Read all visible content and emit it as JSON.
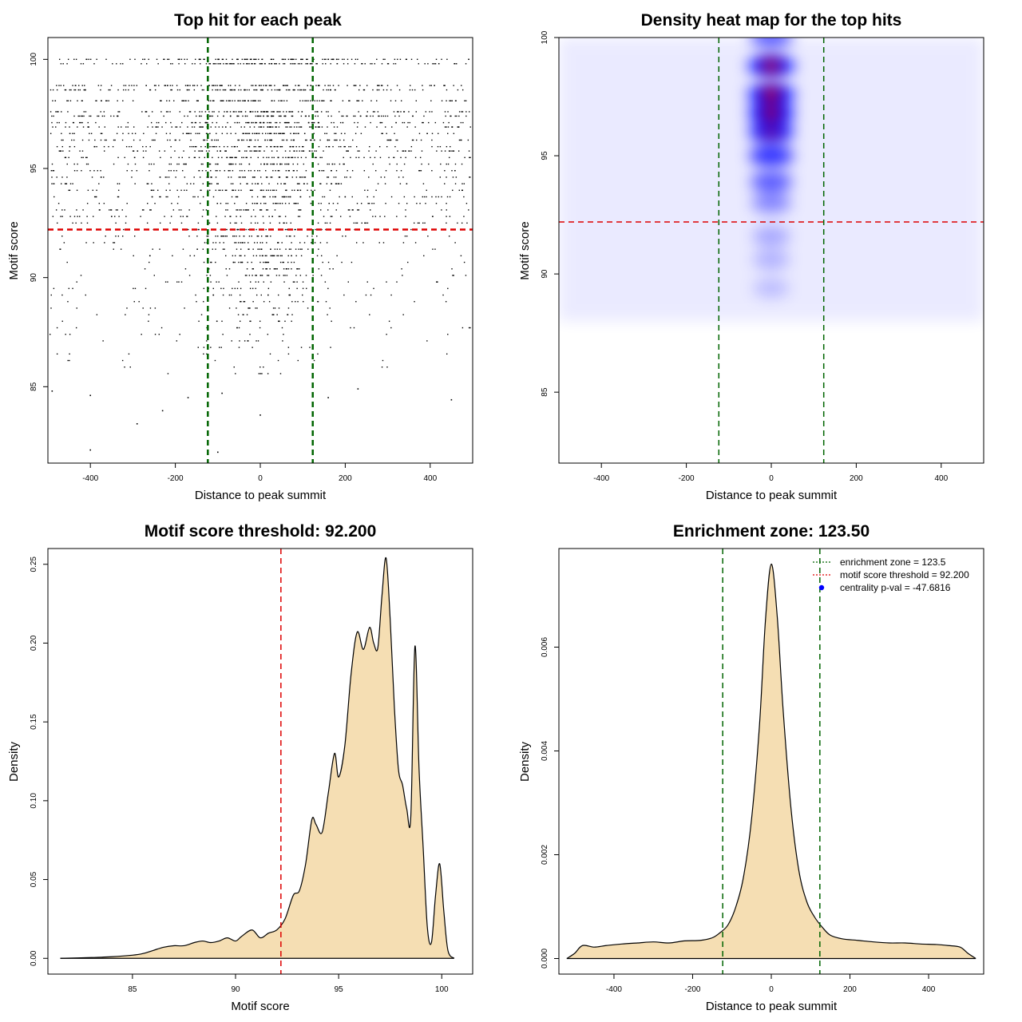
{
  "chart_data": [
    {
      "type": "scatter",
      "title": "Top hit for each peak",
      "xlabel": "Distance to peak summit",
      "ylabel": "Motif score",
      "xlim": [
        -500,
        500
      ],
      "ylim": [
        81.5,
        101
      ],
      "xticks": [
        -400,
        -200,
        0,
        200,
        400
      ],
      "yticks": [
        85,
        90,
        95,
        100
      ],
      "score_levels": [
        100,
        99.8,
        98.8,
        98.6,
        98.1,
        97.6,
        97.4,
        97.1,
        96.9,
        96.6,
        96.3,
        96.0,
        95.8,
        95.5,
        95.2,
        94.9,
        94.6,
        94.3,
        94.0,
        93.7,
        93.4,
        93.1,
        92.8,
        92.5,
        92.2,
        91.9,
        91.6,
        91.3,
        91.0,
        90.7,
        90.4,
        90.1,
        89.8,
        89.5,
        89.2,
        88.9,
        88.6,
        88.3,
        88.0,
        87.7,
        87.4,
        87.1,
        86.8,
        86.5,
        86.2,
        85.9,
        85.6
      ],
      "isolated_points": [
        {
          "x": -490,
          "y": 84.8
        },
        {
          "x": -400,
          "y": 84.6
        },
        {
          "x": -230,
          "y": 83.9
        },
        {
          "x": -290,
          "y": 83.3
        },
        {
          "x": -170,
          "y": 84.5
        },
        {
          "x": -90,
          "y": 84.7
        },
        {
          "x": 0,
          "y": 83.7
        },
        {
          "x": 160,
          "y": 84.5
        },
        {
          "x": 230,
          "y": 84.9
        },
        {
          "x": 450,
          "y": 84.4
        },
        {
          "x": -400,
          "y": 82.1
        },
        {
          "x": -100,
          "y": 82.0
        }
      ],
      "hlines": [
        {
          "y": 92.2,
          "color": "#dd0000"
        }
      ],
      "vlines": [
        {
          "x": -123.5,
          "color": "#006400"
        },
        {
          "x": 123.5,
          "color": "#006400"
        }
      ]
    },
    {
      "type": "heatmap",
      "title": "Density heat map for the top hits",
      "xlabel": "Distance to peak summit",
      "ylabel": "Motif score",
      "xlim": [
        -500,
        500
      ],
      "ylim": [
        82,
        100
      ],
      "xticks": [
        -400,
        -200,
        0,
        200,
        400
      ],
      "yticks": [
        85,
        90,
        95,
        100
      ],
      "hot_spots": [
        {
          "x": 0,
          "y": 100.0,
          "level": 0.55
        },
        {
          "x": 0,
          "y": 98.8,
          "level": 0.95
        },
        {
          "x": 0,
          "y": 97.6,
          "level": 1.0
        },
        {
          "x": 0,
          "y": 96.8,
          "level": 0.95
        },
        {
          "x": 0,
          "y": 96.0,
          "level": 0.85
        },
        {
          "x": 0,
          "y": 95.0,
          "level": 0.75
        },
        {
          "x": 0,
          "y": 93.9,
          "level": 0.55
        },
        {
          "x": 0,
          "y": 93.0,
          "level": 0.35
        },
        {
          "x": 0,
          "y": 91.6,
          "level": 0.2
        },
        {
          "x": 0,
          "y": 90.6,
          "level": 0.15
        },
        {
          "x": 0,
          "y": 89.4,
          "level": 0.1
        }
      ],
      "hlines": [
        {
          "y": 92.2,
          "color": "#dd0000"
        }
      ],
      "vlines": [
        {
          "x": -123.5,
          "color": "#006400"
        },
        {
          "x": 123.5,
          "color": "#006400"
        }
      ],
      "colors": {
        "low": "#ffffff",
        "mid": "#0000ff",
        "high": "#ff0000"
      }
    },
    {
      "type": "area",
      "title": "Motif score threshold: 92.200",
      "xlabel": "Motif score",
      "ylabel": "Density",
      "xlim": [
        80.9,
        101.5
      ],
      "ylim": [
        -0.01,
        0.26
      ],
      "xticks": [
        85,
        90,
        95,
        100
      ],
      "yticks": [
        0.0,
        0.05,
        0.1,
        0.15,
        0.2,
        0.25
      ],
      "ytick_labels": [
        "0.00",
        "0.05",
        "0.10",
        "0.15",
        "0.20",
        "0.25"
      ],
      "x": [
        81.5,
        83.0,
        84.0,
        85.0,
        85.5,
        86.0,
        86.5,
        87.0,
        87.5,
        88.0,
        88.4,
        88.8,
        89.2,
        89.6,
        90.0,
        90.3,
        90.8,
        91.2,
        91.6,
        92.0,
        92.4,
        92.8,
        93.1,
        93.4,
        93.7,
        93.9,
        94.2,
        94.5,
        94.8,
        95.0,
        95.3,
        95.6,
        95.9,
        96.2,
        96.5,
        96.7,
        96.9,
        97.1,
        97.3,
        97.5,
        97.7,
        97.9,
        98.1,
        98.3,
        98.5,
        98.7,
        98.9,
        99.1,
        99.3,
        99.5,
        99.7,
        99.9,
        100.1,
        100.3,
        100.6
      ],
      "values": [
        0.0,
        0.0005,
        0.001,
        0.002,
        0.003,
        0.005,
        0.007,
        0.008,
        0.008,
        0.01,
        0.011,
        0.01,
        0.011,
        0.013,
        0.011,
        0.014,
        0.018,
        0.013,
        0.016,
        0.018,
        0.025,
        0.04,
        0.043,
        0.06,
        0.088,
        0.085,
        0.08,
        0.105,
        0.13,
        0.115,
        0.135,
        0.18,
        0.207,
        0.196,
        0.21,
        0.2,
        0.197,
        0.23,
        0.254,
        0.215,
        0.16,
        0.12,
        0.11,
        0.095,
        0.09,
        0.198,
        0.12,
        0.07,
        0.02,
        0.01,
        0.04,
        0.06,
        0.03,
        0.005,
        0.0
      ],
      "fill": "#f5deb3",
      "vlines": [
        {
          "x": 92.2,
          "color": "#dd0000"
        }
      ]
    },
    {
      "type": "area",
      "title": "Enrichment zone: 123.50",
      "xlabel": "Distance to peak summit",
      "ylabel": "Density",
      "xlim": [
        -540,
        540
      ],
      "ylim": [
        -0.0003,
        0.0079
      ],
      "xticks": [
        -400,
        -200,
        0,
        200,
        400
      ],
      "yticks": [
        0.0,
        0.002,
        0.004,
        0.006
      ],
      "ytick_labels": [
        "0.000",
        "0.002",
        "0.004",
        "0.006"
      ],
      "x": [
        -520,
        -500,
        -480,
        -450,
        -420,
        -380,
        -340,
        -300,
        -260,
        -220,
        -180,
        -150,
        -130,
        -110,
        -90,
        -70,
        -50,
        -30,
        -15,
        0,
        15,
        30,
        50,
        70,
        90,
        110,
        130,
        150,
        180,
        220,
        260,
        300,
        340,
        380,
        420,
        450,
        480,
        500,
        520
      ],
      "values": [
        0.0,
        0.0001,
        0.00025,
        0.00022,
        0.00025,
        0.00028,
        0.0003,
        0.00032,
        0.0003,
        0.00034,
        0.00035,
        0.0004,
        0.0005,
        0.00065,
        0.001,
        0.0016,
        0.0027,
        0.0045,
        0.0065,
        0.0076,
        0.0066,
        0.0048,
        0.0029,
        0.0017,
        0.0011,
        0.0008,
        0.0006,
        0.00045,
        0.00038,
        0.00035,
        0.00032,
        0.0003,
        0.0003,
        0.00028,
        0.00027,
        0.00025,
        0.00022,
        0.0001,
        0.0
      ],
      "fill": "#f5deb3",
      "vlines": [
        {
          "x": -123.5,
          "color": "#006400"
        },
        {
          "x": 123.5,
          "color": "#006400"
        }
      ],
      "legend": [
        {
          "label": "enrichment zone = 123.5",
          "color": "#006400",
          "symbol": "line"
        },
        {
          "label": "motif score threshold = 92.200",
          "color": "#dd0000",
          "symbol": "line"
        },
        {
          "label": "centrality p-val = -47.6816",
          "color": "#0000ff",
          "symbol": "dot"
        }
      ],
      "legend_position": "top-right"
    }
  ]
}
